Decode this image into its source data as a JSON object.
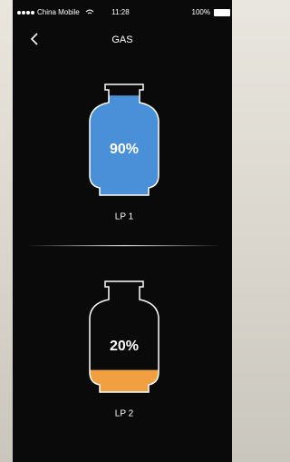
{
  "status_bar": {
    "carrier": "China Mobile",
    "time": "11:28",
    "battery": "100%"
  },
  "header": {
    "title": "GAS"
  },
  "tanks": [
    {
      "name": "LP 1",
      "level": {
        "value": 90,
        "label": "90%"
      },
      "color": "#4a90d9"
    },
    {
      "name": "LP 2",
      "level": {
        "value": 20,
        "label": "20%"
      },
      "color": "#f0a040"
    }
  ]
}
